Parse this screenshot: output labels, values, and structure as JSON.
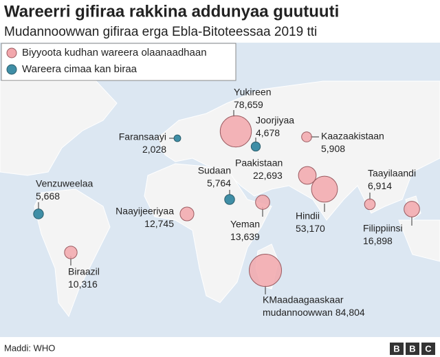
{
  "title": "Wareerri gifiraa rakkina addunyaa guutuuti",
  "subtitle": "Mudannoowwan gifiraa erga Ebla-Bitoteessaa 2019 tti",
  "series": [
    {
      "name": "Biyyoota kudhan wareera olaanaadhaan",
      "color": "#f2a7ac",
      "points": [
        {
          "name": "Yukireen",
          "value": 78659,
          "value_label": "78,659"
        },
        {
          "name": "Kaazaakistaan",
          "value": 5908,
          "value_label": "5,908"
        },
        {
          "name": "Paakistaan",
          "value": 22693,
          "value_label": "22,693"
        },
        {
          "name": "Hindii",
          "value": 53170,
          "value_label": "53,170"
        },
        {
          "name": "Taayilaandi",
          "value": 6914,
          "value_label": "6,914"
        },
        {
          "name": "Filippiinsi",
          "value": 16898,
          "value_label": "16,898"
        },
        {
          "name": "Yeman",
          "value": 13639,
          "value_label": "13,639"
        },
        {
          "name": "Naayijeeriyaa",
          "value": 12745,
          "value_label": "12,745"
        },
        {
          "name": "Biraazil",
          "value": 10316,
          "value_label": "10,316"
        },
        {
          "name": "KMaadaagaaskaar",
          "note": "mudannoowwan",
          "value": 84804,
          "value_label": "84,804"
        }
      ]
    },
    {
      "name": "Wareera cimaa kan biraa",
      "color": "#3f8ea6",
      "points": [
        {
          "name": "Joorjiyaa",
          "value": 4678,
          "value_label": "4,678"
        },
        {
          "name": "Faransaayi",
          "value": 2028,
          "value_label": "2,028"
        },
        {
          "name": "Sudaan",
          "value": 5764,
          "value_label": "5,764"
        },
        {
          "name": "Venzuweelaa",
          "value": 5668,
          "value_label": "5,668"
        }
      ]
    }
  ],
  "source": "Maddi: WHO",
  "logo": [
    "B",
    "B",
    "C"
  ]
}
